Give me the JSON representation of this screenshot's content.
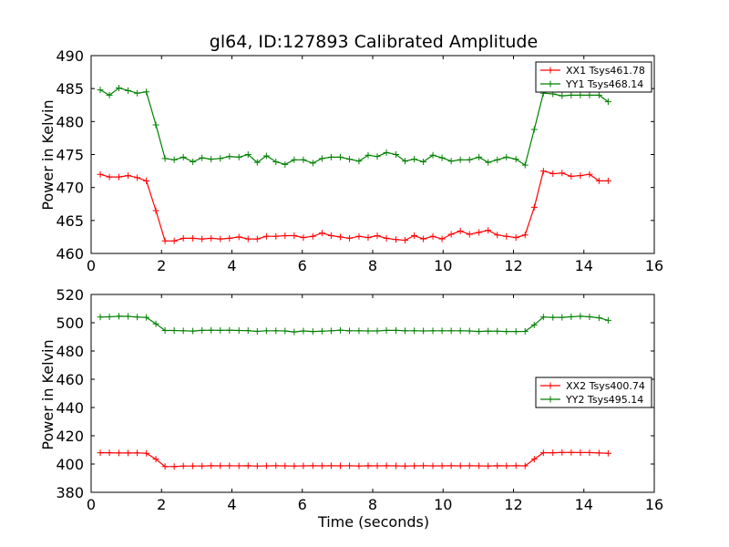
{
  "chart_data": [
    {
      "type": "line",
      "title": "gl64, ID:127893 Calibrated Amplitude",
      "xlabel": "",
      "ylabel": "Power in Kelvin",
      "xlim": [
        0,
        16
      ],
      "ylim": [
        460,
        490
      ],
      "xticks": [
        0,
        2,
        4,
        6,
        8,
        10,
        12,
        14,
        16
      ],
      "yticks": [
        460,
        465,
        470,
        475,
        480,
        485,
        490
      ],
      "grid": false,
      "legend_position": "top-right",
      "x": [
        0.26,
        0.52,
        0.79,
        1.05,
        1.31,
        1.57,
        1.84,
        2.1,
        2.36,
        2.62,
        2.89,
        3.15,
        3.41,
        3.67,
        3.93,
        4.2,
        4.46,
        4.72,
        4.98,
        5.25,
        5.51,
        5.77,
        6.03,
        6.3,
        6.56,
        6.82,
        7.08,
        7.34,
        7.61,
        7.87,
        8.13,
        8.39,
        8.66,
        8.92,
        9.18,
        9.44,
        9.71,
        9.97,
        10.23,
        10.49,
        10.75,
        11.02,
        11.28,
        11.54,
        11.8,
        12.07,
        12.33,
        12.59,
        12.85,
        13.12,
        13.38,
        13.64,
        13.9,
        14.16,
        14.43,
        14.69
      ],
      "series": [
        {
          "name": "XX1 Tsys461.78",
          "color": "#ff0000",
          "values": [
            472.0,
            471.6,
            471.6,
            471.8,
            471.5,
            471.0,
            466.5,
            461.9,
            461.9,
            462.3,
            462.3,
            462.2,
            462.3,
            462.2,
            462.3,
            462.5,
            462.2,
            462.2,
            462.6,
            462.6,
            462.7,
            462.7,
            462.4,
            462.6,
            463.1,
            462.7,
            462.5,
            462.3,
            462.6,
            462.4,
            462.7,
            462.3,
            462.1,
            462.0,
            462.7,
            462.2,
            462.6,
            462.2,
            462.9,
            463.4,
            462.9,
            463.2,
            463.5,
            462.8,
            462.6,
            462.4,
            462.8,
            467.0,
            472.5,
            472.1,
            472.2,
            471.7,
            471.8,
            472.0,
            471.0,
            471.0
          ]
        },
        {
          "name": "YY1 Tsys468.14",
          "color": "#008000",
          "values": [
            484.8,
            484.0,
            485.1,
            484.7,
            484.3,
            484.5,
            479.5,
            474.4,
            474.2,
            474.6,
            473.9,
            474.5,
            474.3,
            474.4,
            474.7,
            474.6,
            475.0,
            473.8,
            474.8,
            473.9,
            473.5,
            474.2,
            474.2,
            473.7,
            474.4,
            474.6,
            474.6,
            474.3,
            474.0,
            474.9,
            474.7,
            475.3,
            475.0,
            474.0,
            474.3,
            473.9,
            474.9,
            474.5,
            474.0,
            474.2,
            474.2,
            474.6,
            473.8,
            474.2,
            474.6,
            474.3,
            473.4,
            478.8,
            484.3,
            484.2,
            483.9,
            484.0,
            484.0,
            484.0,
            484.0,
            483.0
          ]
        }
      ]
    },
    {
      "type": "line",
      "title": "",
      "xlabel": "Time (seconds)",
      "ylabel": "Power in Kelvin",
      "xlim": [
        0,
        16
      ],
      "ylim": [
        380,
        520
      ],
      "xticks": [
        0,
        2,
        4,
        6,
        8,
        10,
        12,
        14,
        16
      ],
      "yticks": [
        380,
        400,
        420,
        440,
        460,
        480,
        500,
        520
      ],
      "grid": false,
      "legend_position": "center-right",
      "x": [
        0.26,
        0.52,
        0.79,
        1.05,
        1.31,
        1.57,
        1.84,
        2.1,
        2.36,
        2.62,
        2.89,
        3.15,
        3.41,
        3.67,
        3.93,
        4.2,
        4.46,
        4.72,
        4.98,
        5.25,
        5.51,
        5.77,
        6.03,
        6.3,
        6.56,
        6.82,
        7.08,
        7.34,
        7.61,
        7.87,
        8.13,
        8.39,
        8.66,
        8.92,
        9.18,
        9.44,
        9.71,
        9.97,
        10.23,
        10.49,
        10.75,
        11.02,
        11.28,
        11.54,
        11.8,
        12.07,
        12.33,
        12.59,
        12.85,
        13.12,
        13.38,
        13.64,
        13.9,
        14.16,
        14.43,
        14.69
      ],
      "series": [
        {
          "name": "XX2 Tsys400.74",
          "color": "#ff0000",
          "values": [
            408.0,
            408.0,
            407.8,
            407.8,
            407.9,
            407.6,
            403.5,
            398.2,
            398.2,
            398.6,
            398.6,
            398.6,
            398.8,
            398.7,
            398.8,
            398.7,
            398.8,
            398.6,
            398.7,
            398.8,
            398.7,
            398.6,
            398.7,
            398.8,
            398.7,
            398.8,
            398.7,
            398.8,
            398.6,
            398.8,
            398.7,
            398.8,
            398.7,
            398.6,
            398.7,
            398.8,
            398.7,
            398.7,
            398.8,
            398.7,
            398.8,
            398.7,
            398.6,
            398.8,
            398.7,
            398.8,
            398.7,
            403.5,
            408.0,
            408.0,
            408.2,
            408.2,
            408.1,
            408.1,
            407.8,
            407.6
          ]
        },
        {
          "name": "YY2 Tsys495.14",
          "color": "#008000",
          "values": [
            504.0,
            504.2,
            504.6,
            504.5,
            504.0,
            503.8,
            499.2,
            494.5,
            494.5,
            494.3,
            494.1,
            494.6,
            494.7,
            494.6,
            494.7,
            494.5,
            494.4,
            493.9,
            494.3,
            494.3,
            494.2,
            493.5,
            494.2,
            493.8,
            494.0,
            494.3,
            494.7,
            494.3,
            494.3,
            494.2,
            494.2,
            494.6,
            494.6,
            494.3,
            494.3,
            494.2,
            494.3,
            494.3,
            494.3,
            494.3,
            494.2,
            493.8,
            494.1,
            494.0,
            493.8,
            493.8,
            493.9,
            498.5,
            504.0,
            503.8,
            503.8,
            504.2,
            504.6,
            504.2,
            503.5,
            501.7
          ]
        }
      ]
    }
  ]
}
